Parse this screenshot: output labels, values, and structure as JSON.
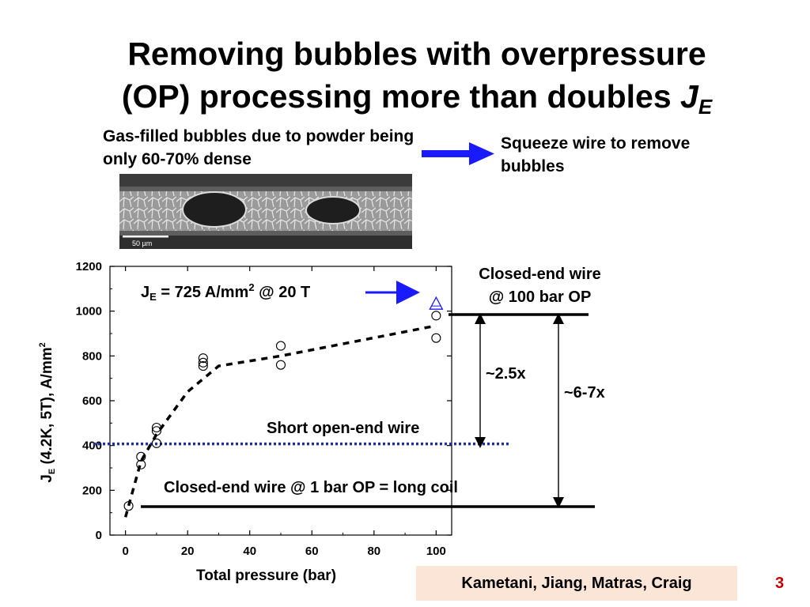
{
  "slide": {
    "title_line1": "Removing bubbles with overpressure",
    "title_line2_prefix": "(OP) processing more than doubles ",
    "title_je": "J",
    "title_je_sub": "E",
    "caption_left": "Gas-filled bubbles due to powder being only 60-70% dense",
    "caption_right": "Squeeze wire to remove bubbles",
    "scale_bar_label": "50 µm",
    "authors": "Kametani, Jiang, Matras, Craig",
    "page_number": "3"
  },
  "annotations": {
    "je_prefix": "J",
    "je_sub": "E",
    "je_mid": " = 725 A/mm",
    "je_sup": "2",
    "je_suffix": " @ 20 T",
    "closed_100_line1": "Closed-end wire",
    "closed_100_line2": "@ 100 bar OP",
    "ratio_short": "~2.5x",
    "ratio_long": "~6-7x",
    "short_open": "Short open-end wire",
    "closed_1bar": "Closed-end wire @ 1 bar OP = long coil"
  },
  "colors": {
    "arrow_blue": "#1a1aff",
    "dotted_line": "#1f2f9f",
    "author_box": "#fbe5d6",
    "page_number": "#c00000"
  },
  "chart_data": {
    "type": "scatter",
    "xlabel": "Total pressure (bar)",
    "ylabel_prefix": "J",
    "ylabel_sub": "E",
    "ylabel_mid": " (4.2K, 5T), A/mm",
    "ylabel_sup": "2",
    "xlim": [
      -5,
      105
    ],
    "ylim": [
      0,
      1200
    ],
    "xticks": [
      0,
      20,
      40,
      60,
      80,
      100
    ],
    "yticks": [
      0,
      200,
      400,
      600,
      800,
      1000,
      1200
    ],
    "series": [
      {
        "marker": "circle",
        "x": [
          1,
          5,
          5,
          10,
          10,
          10,
          25,
          25,
          25,
          50,
          50,
          100,
          100
        ],
        "y": [
          130,
          350,
          315,
          480,
          465,
          410,
          790,
          770,
          755,
          845,
          760,
          980,
          880
        ]
      },
      {
        "marker": "triangle",
        "x": [
          100
        ],
        "y": [
          1030
        ]
      }
    ],
    "trend_line": {
      "style": "dashed",
      "x": [
        0,
        5,
        10,
        20,
        30,
        50,
        100
      ],
      "y": [
        80,
        330,
        450,
        640,
        755,
        800,
        935
      ]
    },
    "reference_lines": [
      {
        "label": "Short open-end wire",
        "y": 400,
        "style": "dotted"
      },
      {
        "label": "Closed-end wire @ 1 bar OP = long coil",
        "y": 130,
        "style": "solid"
      },
      {
        "label": "Closed-end wire @ 100 bar OP",
        "y": 985,
        "style": "solid"
      }
    ]
  }
}
